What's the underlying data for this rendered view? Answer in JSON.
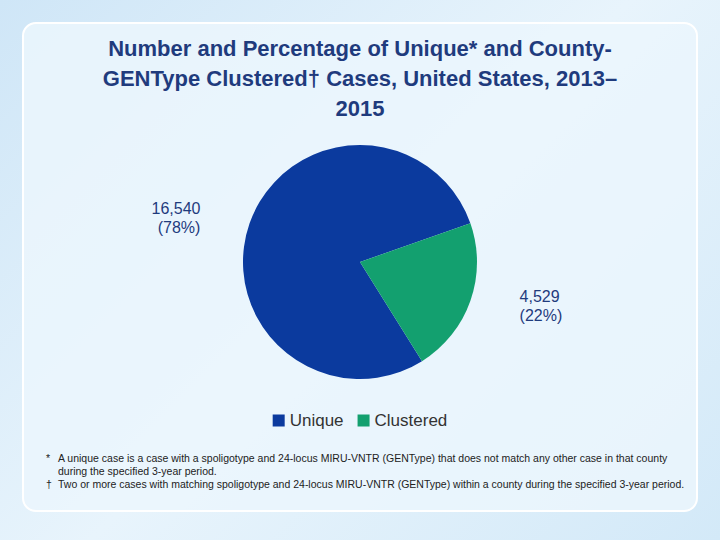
{
  "chart_data": {
    "type": "pie",
    "title": "Number and Percentage of Unique* and County-GENType Clustered† Cases, United States, 2013–2015",
    "categories": [
      "Unique",
      "Clustered"
    ],
    "values": [
      16540,
      4529
    ],
    "value_labels": [
      "16,540\n(78%)",
      "4,529\n(22%)"
    ],
    "colors": [
      "#0b3a9e",
      "#13a06f"
    ],
    "data_labels": true,
    "legend": "bottom",
    "notes": [
      {
        "mark": "*",
        "text": "A unique case is a case with a spoligotype and 24-locus MIRU-VNTR (GENType) that does not match any other case in that county during the specified 3-year period."
      },
      {
        "mark": "†",
        "text": "Two or more cases with matching spoligotype and 24-locus MIRU-VNTR (GENType) within a county during the specified 3-year period."
      }
    ]
  }
}
